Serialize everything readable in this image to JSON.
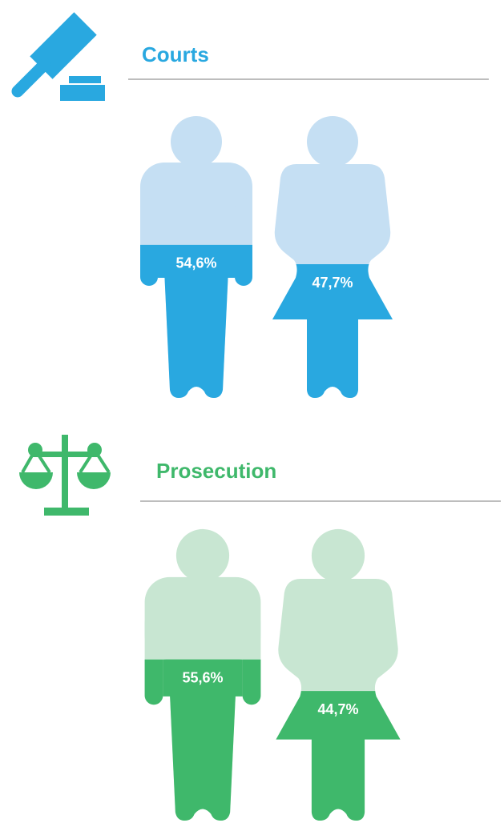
{
  "chart_data": [
    {
      "type": "pictogram",
      "title": "Courts",
      "values": [
        54.6,
        47.7
      ],
      "value_labels": [
        "54,6%",
        "47,7%"
      ],
      "color": "#29a8e0",
      "light_color": "#c5dff3"
    },
    {
      "type": "pictogram",
      "title": "Prosecution",
      "values": [
        55.6,
        44.7
      ],
      "value_labels": [
        "55,6%",
        "44,7%"
      ],
      "color": "#3fb86b",
      "light_color": "#c8e6d2"
    }
  ]
}
